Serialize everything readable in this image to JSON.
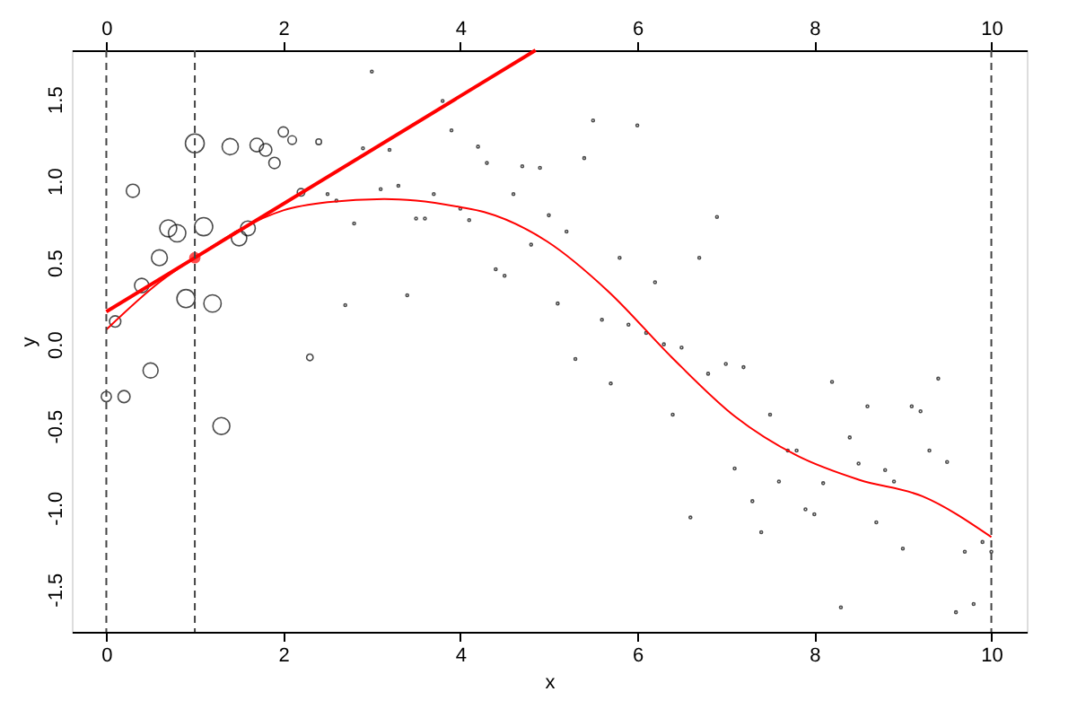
{
  "chart_data": {
    "type": "bubble",
    "xlabel": "x",
    "ylabel": "y",
    "xlim": [
      -0.39,
      10.4
    ],
    "xticks": [
      0,
      2,
      4,
      6,
      8,
      10
    ],
    "x2lim": [
      -0.39,
      10.4
    ],
    "x2ticks": [
      0,
      2,
      4,
      6,
      8,
      10
    ],
    "ylim": [
      -1.76,
      1.8
    ],
    "yticks": [
      {
        "value": -1.5,
        "label": "-1.5"
      },
      {
        "value": -1,
        "label": "-1.0"
      },
      {
        "value": -0.5,
        "label": "-0.5"
      },
      {
        "value": 0,
        "label": "0.0"
      },
      {
        "value": 0.5,
        "label": "0.5"
      },
      {
        "value": 1,
        "label": "1.0"
      },
      {
        "value": 1.5,
        "label": "1.5"
      }
    ],
    "grid": false,
    "legend": false,
    "series": [
      {
        "color": "#000000",
        "marker": "circle",
        "x": [
          0,
          0.1,
          0.2,
          0.3,
          0.4,
          0.5,
          0.6,
          0.7,
          0.8,
          0.9,
          1,
          1.1,
          1.2,
          1.3,
          1.4,
          1.5,
          1.6,
          1.7,
          1.8,
          1.9,
          2,
          2.1,
          2.2,
          2.3,
          2.4,
          2.5,
          2.6,
          2.7,
          2.8,
          2.9,
          3,
          3.1,
          3.2,
          3.3,
          3.4,
          3.5,
          3.6,
          3.7,
          3.8,
          3.9,
          4,
          4.1,
          4.2,
          4.3,
          4.4,
          4.5,
          4.6,
          4.7,
          4.8,
          4.9,
          5,
          5.1,
          5.2,
          5.3,
          5.4,
          5.5,
          5.6,
          5.7,
          5.8,
          5.9,
          6,
          6.1,
          6.2,
          6.3,
          6.4,
          6.5,
          6.6,
          6.7,
          6.8,
          6.9,
          7,
          7.1,
          7.2,
          7.3,
          7.4,
          7.5,
          7.6,
          7.7,
          7.8,
          7.9,
          8,
          8.1,
          8.2,
          8.3,
          8.4,
          8.5,
          8.6,
          8.7,
          8.8,
          8.9,
          9,
          9.1,
          9.2,
          9.3,
          9.4,
          9.5,
          9.6,
          9.7,
          9.8,
          9.9,
          10
        ],
        "values": [
          -0.32,
          0.14,
          -0.32,
          0.94,
          0.36,
          -0.16,
          0.53,
          0.71,
          0.68,
          0.28,
          1.23,
          0.72,
          0.25,
          -0.5,
          1.21,
          0.65,
          0.71,
          1.22,
          1.19,
          1.11,
          1.3,
          1.25,
          0.93,
          -0.08,
          1.24,
          0.92,
          0.88,
          0.24,
          0.74,
          1.2,
          1.67,
          0.95,
          1.19,
          0.97,
          0.3,
          0.77,
          0.77,
          0.92,
          1.49,
          1.31,
          0.83,
          0.76,
          1.21,
          1.11,
          0.46,
          0.42,
          0.92,
          1.09,
          0.61,
          1.08,
          0.79,
          0.25,
          0.69,
          -0.09,
          1.14,
          1.37,
          0.15,
          -0.24,
          0.53,
          0.12,
          1.34,
          0.07,
          0.38,
          0.0,
          -0.43,
          -0.02,
          -1.06,
          0.53,
          -0.18,
          0.78,
          -0.12,
          -0.76,
          -0.14,
          -0.96,
          -1.15,
          -0.43,
          -0.84,
          -0.65,
          -0.65,
          -1.01,
          -1.04,
          -0.85,
          -0.23,
          -1.61,
          -0.57,
          -0.73,
          -0.38,
          -1.09,
          -0.77,
          -0.84,
          -1.25,
          -0.38,
          -0.41,
          -0.65,
          -0.21,
          -0.72,
          -1.64,
          -1.27,
          -1.59,
          -1.21,
          -1.27
        ],
        "sizes": [
          0.29,
          0.36,
          0.41,
          0.49,
          0.58,
          0.64,
          0.71,
          0.81,
          0.85,
          0.92,
          1,
          0.92,
          0.85,
          0.81,
          0.74,
          0.67,
          0.61,
          0.52,
          0.44,
          0.36,
          0.29,
          0.21,
          0.16,
          0.12,
          0.09,
          0.02,
          0.02,
          0.02,
          0.02,
          0.02,
          0.02,
          0.02,
          0.02,
          0.02,
          0.02,
          0.02,
          0.02,
          0.02,
          0.02,
          0.02,
          0.02,
          0.02,
          0.02,
          0.02,
          0.02,
          0.02,
          0.02,
          0.02,
          0.02,
          0.02,
          0.02,
          0.02,
          0.02,
          0.02,
          0.02,
          0.02,
          0.02,
          0.02,
          0.02,
          0.02,
          0.02,
          0.02,
          0.02,
          0.02,
          0.02,
          0.02,
          0.02,
          0.02,
          0.02,
          0.02,
          0.02,
          0.02,
          0.02,
          0.02,
          0.02,
          0.02,
          0.02,
          0.02,
          0.02,
          0.02,
          0.02,
          0.02,
          0.02,
          0.02,
          0.02,
          0.02,
          0.02,
          0.02,
          0.02,
          0.02,
          0.02,
          0.02,
          0.02,
          0.02,
          0.02,
          0.02,
          0.02,
          0.02,
          0.02,
          0.02,
          0.02
        ]
      },
      {
        "type": "line",
        "color": "#ff0000",
        "x": [
          0,
          4.85
        ],
        "values": [
          0.2,
          1.8
        ],
        "line_style": "solid"
      },
      {
        "type": "scatter",
        "color": "#ff0000",
        "marker": "circle",
        "x": [
          1
        ],
        "values": [
          0.53
        ]
      },
      {
        "type": "line",
        "color": "#ff0000",
        "x": [
          0,
          0.6,
          1,
          1.5,
          2,
          2.5,
          3.14,
          3.5,
          4,
          4.27,
          4.98,
          5.68,
          6.39,
          7.1,
          7.8,
          8.51,
          9.22,
          10
        ],
        "values": [
          0.09,
          0.38,
          0.53,
          0.7,
          0.82,
          0.87,
          0.89,
          0.88,
          0.84,
          0.81,
          0.63,
          0.32,
          -0.08,
          -0.44,
          -0.68,
          -0.83,
          -0.93,
          -1.18
        ],
        "line_style": "solid"
      }
    ],
    "ref_lines": [
      {
        "axis": "x",
        "value": 0,
        "color": "#444444",
        "line_style": "dashed"
      },
      {
        "axis": "x",
        "value": 1,
        "color": "#444444",
        "line_style": "dashed"
      },
      {
        "axis": "x",
        "value": 10,
        "color": "#444444",
        "line_style": "dashed"
      }
    ]
  }
}
